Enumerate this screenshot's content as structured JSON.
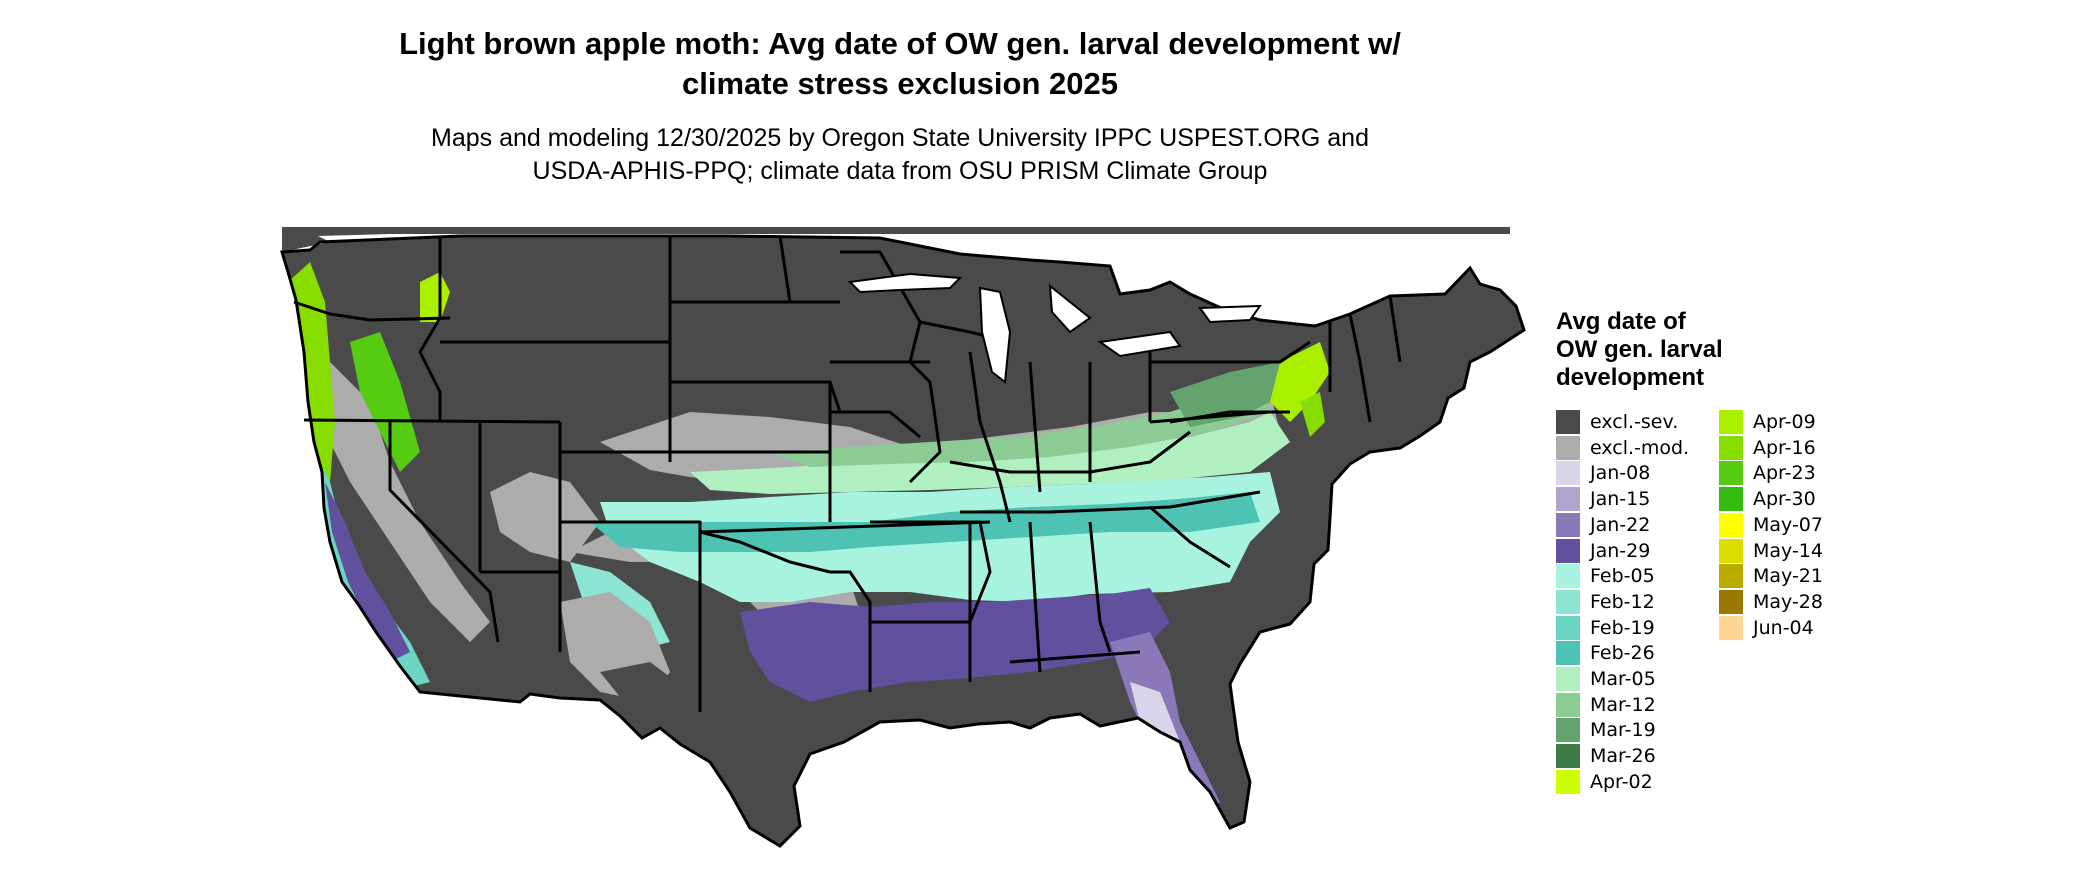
{
  "title": {
    "line1": "Light brown apple moth: Avg date of OW gen. larval development w/",
    "line2": "climate stress exclusion 2025"
  },
  "subtitle": {
    "line1": "Maps and modeling 12/30/2025 by Oregon State University IPPC USPEST.ORG and",
    "line2": "USDA-APHIS-PPQ; climate data from OSU PRISM Climate Group"
  },
  "legend": {
    "title_line1": "Avg date of",
    "title_line2": "OW gen. larval",
    "title_line3": "development",
    "items": [
      {
        "label": "excl.-sev.",
        "color": "#4a4a4a"
      },
      {
        "label": "excl.-mod.",
        "color": "#acacac"
      },
      {
        "label": "Jan-08",
        "color": "#d9d4ea"
      },
      {
        "label": "Jan-15",
        "color": "#b1a5d0"
      },
      {
        "label": "Jan-22",
        "color": "#8a78b8"
      },
      {
        "label": "Jan-29",
        "color": "#60509e"
      },
      {
        "label": "Feb-05",
        "color": "#a7f3e0"
      },
      {
        "label": "Feb-12",
        "color": "#8ce5d2"
      },
      {
        "label": "Feb-19",
        "color": "#6dd5c3"
      },
      {
        "label": "Feb-26",
        "color": "#4ec3b4"
      },
      {
        "label": "Mar-05",
        "color": "#b0f0c0"
      },
      {
        "label": "Mar-12",
        "color": "#8ccc94"
      },
      {
        "label": "Mar-19",
        "color": "#62a36e"
      },
      {
        "label": "Mar-26",
        "color": "#3e7a45"
      },
      {
        "label": "Apr-02",
        "color": "#ccff00"
      },
      {
        "label": "Apr-09",
        "color": "#aaee00"
      },
      {
        "label": "Apr-16",
        "color": "#88dd00"
      },
      {
        "label": "Apr-23",
        "color": "#55cc11"
      },
      {
        "label": "Apr-30",
        "color": "#33bb11"
      },
      {
        "label": "May-07",
        "color": "#ffff00"
      },
      {
        "label": "May-14",
        "color": "#dddd00"
      },
      {
        "label": "May-21",
        "color": "#bbaa00"
      },
      {
        "label": "May-28",
        "color": "#997700"
      },
      {
        "label": "Jun-04",
        "color": "#ffd592"
      }
    ]
  }
}
